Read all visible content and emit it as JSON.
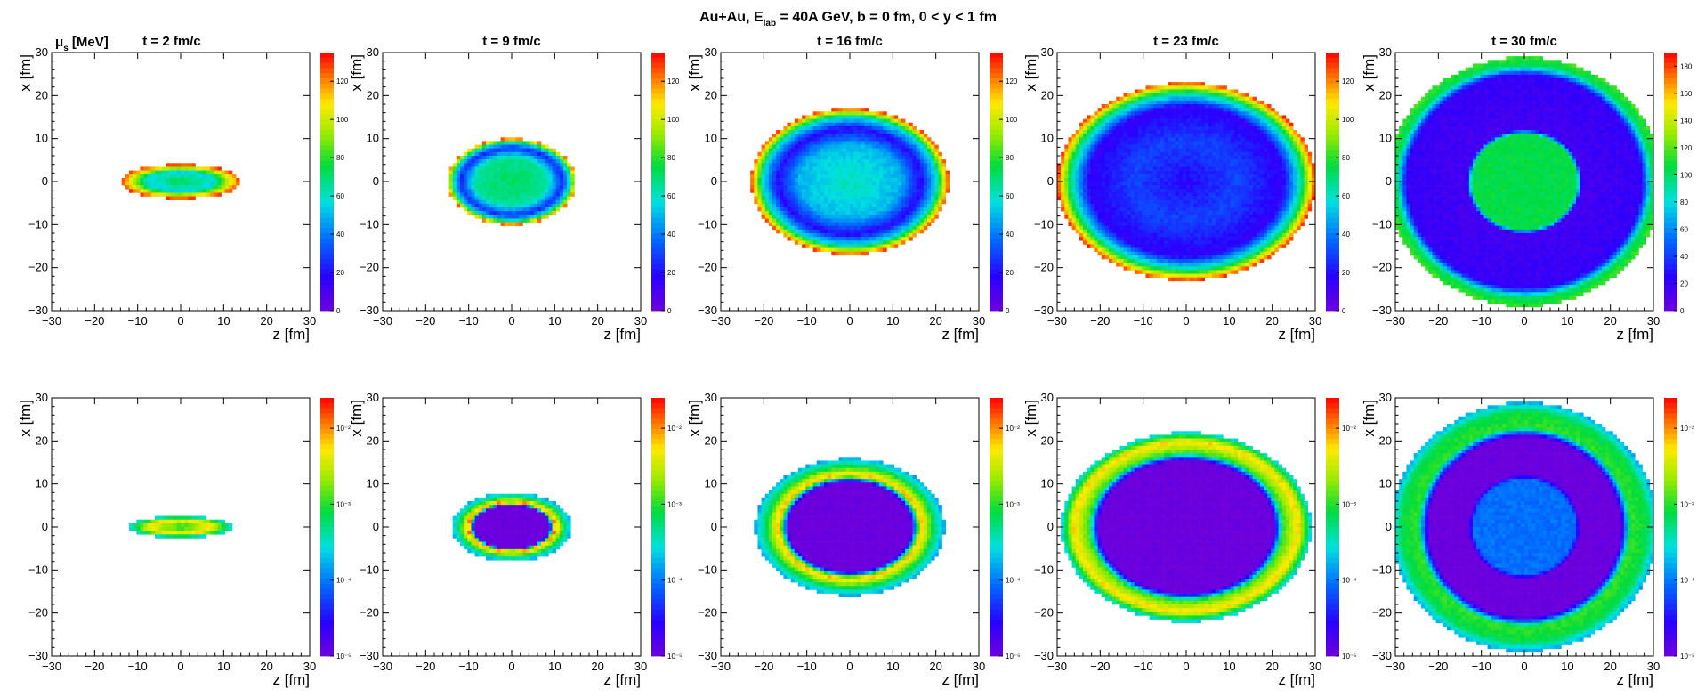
{
  "figure": {
    "title_prefix": "Au+Au, E",
    "title_sub": "lab",
    "title_suffix": " = 40A GeV, b = 0 fm, 0 < y < 1 fm"
  },
  "chart_data": {
    "type": "heatmap",
    "title": "Au+Au, E_lab = 40A GeV, b = 0 fm, 0 < y < 1 fm",
    "xlabel": "z [fm]",
    "ylabel": "x [fm]",
    "xlim": [
      -30,
      30
    ],
    "ylim": [
      -30,
      30
    ],
    "x_ticks": [
      "−30",
      "−20",
      "−10",
      "0",
      "10",
      "20",
      "30"
    ],
    "y_ticks": [
      "−30",
      "−20",
      "−10",
      "0",
      "10",
      "20",
      "30"
    ],
    "times": [
      "t = 2 fm/c",
      "t = 9 fm/c",
      "t = 16 fm/c",
      "t = 23 fm/c",
      "t = 30 fm/c"
    ],
    "rows": [
      {
        "quantity": "μ_S [MeV]",
        "quantity_base": "μ",
        "quantity_sub": "s",
        "quantity_unit": " [MeV]",
        "scale": "linear",
        "colorbar_ticks": [
          [
            "0",
            "20",
            "40",
            "60",
            "80",
            "100",
            "120"
          ],
          [
            "0",
            "20",
            "40",
            "60",
            "80",
            "100",
            "120"
          ],
          [
            "0",
            "20",
            "40",
            "60",
            "80",
            "100",
            "120"
          ],
          [
            "0",
            "20",
            "40",
            "60",
            "80",
            "100",
            "120"
          ],
          [
            "0",
            "20",
            "40",
            "60",
            "80",
            "100",
            "120",
            "140",
            "160",
            "180"
          ]
        ],
        "colorbar_max": [
          135,
          135,
          135,
          135,
          190
        ],
        "panels": [
          {
            "shape": [
              4,
              14
            ],
            "rings": [
              [
                0.0,
                75
              ],
              [
                0.55,
                55
              ],
              [
                0.8,
                100
              ],
              [
                1.0,
                130
              ]
            ]
          },
          {
            "shape": [
              10,
              15
            ],
            "rings": [
              [
                0.0,
                72
              ],
              [
                0.55,
                65
              ],
              [
                0.78,
                25
              ],
              [
                0.9,
                60
              ],
              [
                1.0,
                125
              ]
            ]
          },
          {
            "shape": [
              17,
              23
            ],
            "rings": [
              [
                0.0,
                62
              ],
              [
                0.5,
                50
              ],
              [
                0.72,
                18
              ],
              [
                0.88,
                60
              ],
              [
                1.0,
                128
              ]
            ]
          },
          {
            "shape": [
              23,
              30
            ],
            "rings": [
              [
                0.0,
                18
              ],
              [
                0.4,
                30
              ],
              [
                0.75,
                15
              ],
              [
                0.9,
                70
              ],
              [
                1.0,
                130
              ]
            ]
          },
          {
            "shape": [
              29,
              32
            ],
            "rings": [
              [
                0.0,
                105
              ],
              [
                0.38,
                105
              ],
              [
                0.42,
                15
              ],
              [
                0.85,
                20
              ],
              [
                0.93,
                100
              ],
              [
                1.0,
                115
              ]
            ]
          }
        ]
      },
      {
        "quantity": "",
        "scale": "log",
        "colorbar_ticks": [
          [
            "10⁻⁵",
            "10⁻⁴",
            "10⁻³",
            "10⁻²"
          ],
          [
            "10⁻⁵",
            "10⁻⁴",
            "10⁻³",
            "10⁻²"
          ],
          [
            "10⁻⁵",
            "10⁻⁴",
            "10⁻³",
            "10⁻²"
          ],
          [
            "10⁻⁵",
            "10⁻⁴",
            "10⁻³",
            "10⁻²"
          ],
          [
            "10⁻⁵",
            "10⁻⁴",
            "10⁻³",
            "10⁻²"
          ]
        ],
        "panels": [
          {
            "shape": [
              2.5,
              12
            ],
            "rings": [
              [
                0.0,
                0.55
              ],
              [
                0.6,
                0.8
              ],
              [
                1.0,
                0.4
              ]
            ]
          },
          {
            "shape": [
              8,
              14
            ],
            "rings": [
              [
                0.0,
                0.0
              ],
              [
                0.62,
                0.0
              ],
              [
                0.72,
                0.9
              ],
              [
                0.86,
                0.55
              ],
              [
                1.0,
                0.35
              ]
            ]
          },
          {
            "shape": [
              16,
              22
            ],
            "rings": [
              [
                0.0,
                0.0
              ],
              [
                0.65,
                0.0
              ],
              [
                0.75,
                0.85
              ],
              [
                0.88,
                0.55
              ],
              [
                1.0,
                0.35
              ]
            ]
          },
          {
            "shape": [
              22,
              29
            ],
            "rings": [
              [
                0.0,
                0.0
              ],
              [
                0.7,
                0.0
              ],
              [
                0.78,
                0.6
              ],
              [
                0.9,
                0.82
              ],
              [
                1.0,
                0.4
              ]
            ]
          },
          {
            "shape": [
              29,
              31
            ],
            "rings": [
              [
                0.0,
                0.28
              ],
              [
                0.38,
                0.28
              ],
              [
                0.42,
                0.0
              ],
              [
                0.72,
                0.0
              ],
              [
                0.8,
                0.6
              ],
              [
                0.92,
                0.55
              ],
              [
                1.0,
                0.35
              ]
            ]
          }
        ]
      }
    ]
  }
}
